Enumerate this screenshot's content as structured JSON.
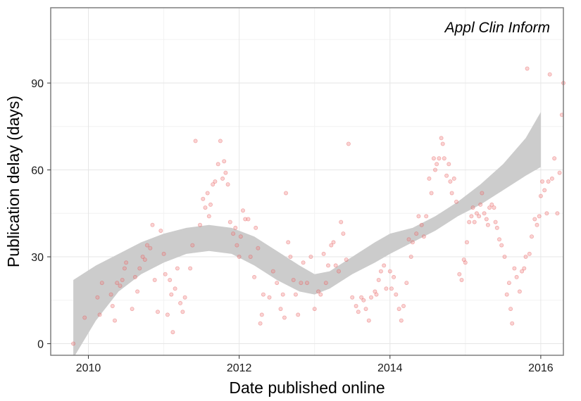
{
  "chart_data": {
    "type": "scatter",
    "annotation": "Appl Clin Inform",
    "xlabel": "Date published online",
    "ylabel": "Publication delay (days)",
    "xlim": [
      2009.5,
      2016.3
    ],
    "ylim": [
      -4,
      116
    ],
    "x_ticks": [
      2010,
      2012,
      2014,
      2016
    ],
    "x_tick_labels": [
      "2010",
      "2012",
      "2014",
      "2016"
    ],
    "y_ticks": [
      0,
      30,
      60,
      90
    ],
    "y_tick_labels": [
      "0",
      "30",
      "60",
      "90"
    ],
    "grid": true,
    "legend": "none",
    "colors": {
      "points": "#f08080",
      "points_stroke": "#e05050",
      "band": "#cccccc",
      "grid_major": "#e6e6e6",
      "grid_minor": "#f2f2f2",
      "frame": "#7f7f7f"
    },
    "series": [
      {
        "points": [
          [
            2009.8,
            0
          ],
          [
            2009.95,
            9
          ],
          [
            2010.12,
            16
          ],
          [
            2010.15,
            10
          ],
          [
            2010.18,
            21
          ],
          [
            2010.3,
            17
          ],
          [
            2010.32,
            13
          ],
          [
            2010.35,
            8
          ],
          [
            2010.38,
            21
          ],
          [
            2010.42,
            20
          ],
          [
            2010.45,
            22
          ],
          [
            2010.48,
            26
          ],
          [
            2010.5,
            28
          ],
          [
            2010.58,
            12
          ],
          [
            2010.62,
            23
          ],
          [
            2010.65,
            18
          ],
          [
            2010.68,
            26
          ],
          [
            2010.72,
            30
          ],
          [
            2010.75,
            29
          ],
          [
            2010.78,
            34
          ],
          [
            2010.82,
            33
          ],
          [
            2010.85,
            41
          ],
          [
            2010.88,
            22
          ],
          [
            2010.92,
            11
          ],
          [
            2010.96,
            39
          ],
          [
            2011.0,
            31
          ],
          [
            2011.02,
            24
          ],
          [
            2011.05,
            10
          ],
          [
            2011.08,
            22
          ],
          [
            2011.1,
            17
          ],
          [
            2011.12,
            4
          ],
          [
            2011.15,
            19
          ],
          [
            2011.18,
            26
          ],
          [
            2011.22,
            14
          ],
          [
            2011.25,
            11
          ],
          [
            2011.28,
            16
          ],
          [
            2011.35,
            26
          ],
          [
            2011.38,
            34
          ],
          [
            2011.42,
            70
          ],
          [
            2011.48,
            41
          ],
          [
            2011.52,
            50
          ],
          [
            2011.55,
            47
          ],
          [
            2011.58,
            52
          ],
          [
            2011.6,
            44
          ],
          [
            2011.62,
            48
          ],
          [
            2011.65,
            55
          ],
          [
            2011.68,
            56
          ],
          [
            2011.72,
            62
          ],
          [
            2011.75,
            70
          ],
          [
            2011.78,
            57
          ],
          [
            2011.8,
            63
          ],
          [
            2011.82,
            59
          ],
          [
            2011.85,
            55
          ],
          [
            2011.88,
            42
          ],
          [
            2011.92,
            38
          ],
          [
            2011.95,
            40
          ],
          [
            2011.97,
            34
          ],
          [
            2012.0,
            30
          ],
          [
            2012.02,
            37
          ],
          [
            2012.05,
            46
          ],
          [
            2012.08,
            43
          ],
          [
            2012.12,
            43
          ],
          [
            2012.15,
            30
          ],
          [
            2012.2,
            23
          ],
          [
            2012.22,
            40
          ],
          [
            2012.25,
            33
          ],
          [
            2012.28,
            7
          ],
          [
            2012.3,
            10
          ],
          [
            2012.32,
            17
          ],
          [
            2012.4,
            16
          ],
          [
            2012.45,
            25
          ],
          [
            2012.5,
            21
          ],
          [
            2012.55,
            12
          ],
          [
            2012.58,
            17
          ],
          [
            2012.6,
            9
          ],
          [
            2012.62,
            52
          ],
          [
            2012.65,
            35
          ],
          [
            2012.68,
            30
          ],
          [
            2012.72,
            22
          ],
          [
            2012.75,
            17
          ],
          [
            2012.78,
            10
          ],
          [
            2012.82,
            21
          ],
          [
            2012.85,
            28
          ],
          [
            2012.9,
            21
          ],
          [
            2012.95,
            30
          ],
          [
            2013.0,
            12
          ],
          [
            2013.05,
            18
          ],
          [
            2013.08,
            17
          ],
          [
            2013.12,
            31
          ],
          [
            2013.15,
            21
          ],
          [
            2013.18,
            27
          ],
          [
            2013.22,
            34
          ],
          [
            2013.25,
            35
          ],
          [
            2013.28,
            27
          ],
          [
            2013.32,
            25
          ],
          [
            2013.35,
            42
          ],
          [
            2013.38,
            38
          ],
          [
            2013.42,
            29
          ],
          [
            2013.45,
            69
          ],
          [
            2013.5,
            16
          ],
          [
            2013.55,
            13
          ],
          [
            2013.58,
            11
          ],
          [
            2013.62,
            16
          ],
          [
            2013.65,
            15
          ],
          [
            2013.68,
            12
          ],
          [
            2013.72,
            8
          ],
          [
            2013.75,
            16
          ],
          [
            2013.8,
            18
          ],
          [
            2013.82,
            17
          ],
          [
            2013.85,
            22
          ],
          [
            2013.88,
            25
          ],
          [
            2013.92,
            27
          ],
          [
            2013.95,
            19
          ],
          [
            2014.0,
            25
          ],
          [
            2014.02,
            19
          ],
          [
            2014.05,
            23
          ],
          [
            2014.08,
            17
          ],
          [
            2014.12,
            12
          ],
          [
            2014.15,
            8
          ],
          [
            2014.18,
            13
          ],
          [
            2014.22,
            21
          ],
          [
            2014.25,
            36
          ],
          [
            2014.28,
            30
          ],
          [
            2014.3,
            35
          ],
          [
            2014.35,
            38
          ],
          [
            2014.38,
            44
          ],
          [
            2014.42,
            41
          ],
          [
            2014.45,
            37
          ],
          [
            2014.48,
            44
          ],
          [
            2014.52,
            57
          ],
          [
            2014.55,
            52
          ],
          [
            2014.58,
            64
          ],
          [
            2014.6,
            60
          ],
          [
            2014.62,
            62
          ],
          [
            2014.65,
            64
          ],
          [
            2014.68,
            71
          ],
          [
            2014.7,
            69
          ],
          [
            2014.72,
            64
          ],
          [
            2014.75,
            58
          ],
          [
            2014.78,
            62
          ],
          [
            2014.8,
            56
          ],
          [
            2014.82,
            52
          ],
          [
            2014.85,
            57
          ],
          [
            2014.88,
            49
          ],
          [
            2014.92,
            24
          ],
          [
            2014.95,
            22
          ],
          [
            2014.98,
            29
          ],
          [
            2015.0,
            28
          ],
          [
            2015.02,
            35
          ],
          [
            2015.05,
            42
          ],
          [
            2015.08,
            44
          ],
          [
            2015.1,
            47
          ],
          [
            2015.12,
            42
          ],
          [
            2015.15,
            45
          ],
          [
            2015.18,
            44
          ],
          [
            2015.2,
            48
          ],
          [
            2015.22,
            52
          ],
          [
            2015.25,
            45
          ],
          [
            2015.28,
            43
          ],
          [
            2015.3,
            41
          ],
          [
            2015.32,
            47
          ],
          [
            2015.35,
            48
          ],
          [
            2015.38,
            47
          ],
          [
            2015.4,
            42
          ],
          [
            2015.42,
            40
          ],
          [
            2015.45,
            36
          ],
          [
            2015.48,
            34
          ],
          [
            2015.52,
            30
          ],
          [
            2015.55,
            17
          ],
          [
            2015.58,
            21
          ],
          [
            2015.6,
            12
          ],
          [
            2015.62,
            7
          ],
          [
            2015.65,
            26
          ],
          [
            2015.68,
            23
          ],
          [
            2015.72,
            18
          ],
          [
            2015.75,
            25
          ],
          [
            2015.78,
            26
          ],
          [
            2015.8,
            30
          ],
          [
            2015.82,
            95
          ],
          [
            2015.85,
            31
          ],
          [
            2015.88,
            37
          ],
          [
            2015.92,
            43
          ],
          [
            2015.95,
            41
          ],
          [
            2015.98,
            44
          ],
          [
            2016.0,
            51
          ],
          [
            2016.02,
            56
          ],
          [
            2016.05,
            53
          ],
          [
            2016.08,
            45
          ],
          [
            2016.1,
            56
          ],
          [
            2016.12,
            93
          ],
          [
            2016.15,
            57
          ],
          [
            2016.18,
            64
          ],
          [
            2016.22,
            45
          ],
          [
            2016.25,
            59
          ],
          [
            2016.28,
            79
          ],
          [
            2016.3,
            90
          ]
        ]
      }
    ],
    "smooth_band": {
      "x": [
        2009.8,
        2010.1,
        2010.4,
        2010.7,
        2011.0,
        2011.3,
        2011.6,
        2011.9,
        2012.2,
        2012.5,
        2012.8,
        2013.0,
        2013.2,
        2013.5,
        2013.8,
        2014.0,
        2014.3,
        2014.6,
        2014.9,
        2015.2,
        2015.5,
        2015.8,
        2016.0
      ],
      "lower": [
        -5,
        8,
        18,
        24,
        28,
        31,
        32,
        31,
        27,
        22,
        18,
        17,
        19,
        24,
        28,
        31,
        35,
        39,
        44,
        48,
        53,
        58,
        61
      ],
      "upper": [
        22,
        27,
        31,
        35,
        38,
        40,
        41,
        40,
        37,
        32,
        27,
        24,
        25,
        30,
        35,
        38,
        40,
        44,
        49,
        55,
        62,
        71,
        80
      ]
    }
  }
}
